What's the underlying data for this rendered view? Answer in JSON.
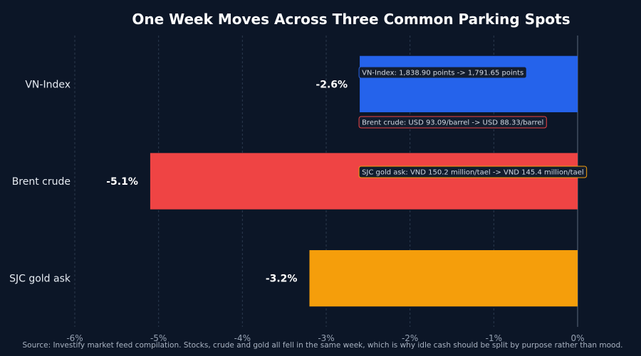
{
  "chart_data": {
    "type": "bar",
    "orientation": "horizontal",
    "title": "One Week Moves Across Three Common Parking Spots",
    "categories": [
      "VN-Index",
      "Brent crude",
      "SJC gold ask"
    ],
    "values": [
      -2.6,
      -5.1,
      -3.2
    ],
    "value_labels": [
      "-2.6%",
      "-5.1%",
      "-3.2%"
    ],
    "bar_colors": [
      "#2563eb",
      "#ef4444",
      "#f59e0b"
    ],
    "xlim": [
      -6,
      0
    ],
    "xticks": [
      -6,
      -5,
      -4,
      -3,
      -2,
      -1,
      0
    ],
    "xtick_labels": [
      "-6%",
      "-5%",
      "-4%",
      "-3%",
      "-2%",
      "-1%",
      "0%"
    ],
    "grid": "vertical dashed",
    "annotations": [
      {
        "text": "VN-Index: 1,838.90 points -> 1,791.65 points",
        "border": "#2563eb",
        "x": -2.6,
        "category": "VN-Index"
      },
      {
        "text": "Brent crude: USD 93.09/barrel -> USD 88.33/barrel",
        "border": "#ef4444",
        "x": -2.6,
        "category": "Brent crude"
      },
      {
        "text": "SJC gold ask: VND 150.2 million/tael -> VND 145.4 million/tael",
        "border": "#f59e0b",
        "x": -2.6,
        "category": "SJC gold ask"
      }
    ],
    "source": "Source: Investify market feed compilation. Stocks, crude and gold all fell in the same week, which is why idle cash should be split by purpose rather than mood."
  }
}
